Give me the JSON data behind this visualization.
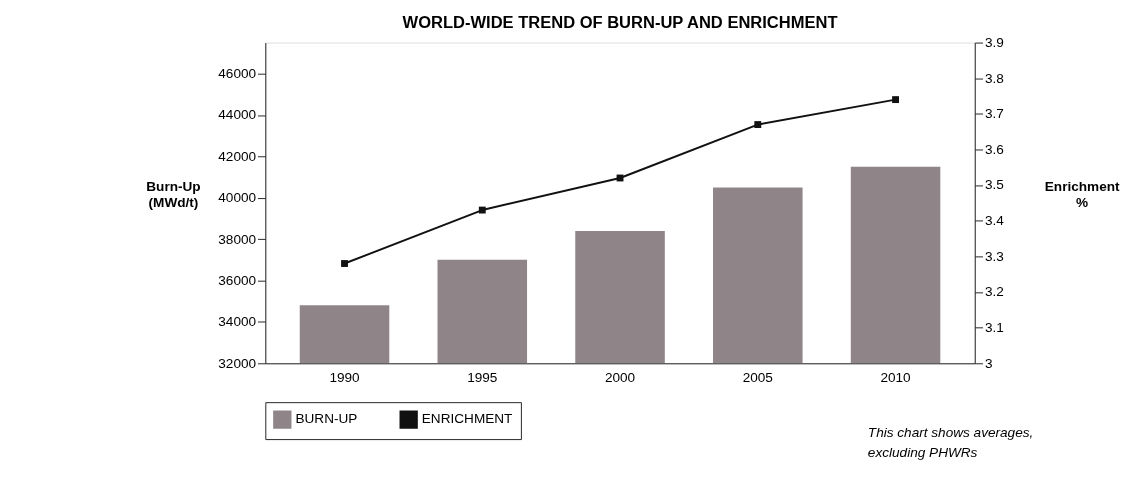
{
  "chart_data": {
    "type": "bar",
    "title": "WORLD-WIDE TREND OF BURN-UP AND ENRICHMENT",
    "categories": [
      "1990",
      "1995",
      "2000",
      "2005",
      "2010"
    ],
    "series": [
      {
        "name": "BURN-UP",
        "color": "#8f8588",
        "values": [
          34800,
          37000,
          38400,
          40500,
          41500
        ]
      },
      {
        "name": "ENRICHMENT",
        "type": "line",
        "axis": "y2",
        "color": "#111111",
        "values": [
          3.28,
          3.43,
          3.52,
          3.67,
          3.74
        ]
      }
    ],
    "ylabel": "Burn-Up (MWd/t)",
    "y2label": "Enrichment %",
    "ylim": [
      32000,
      47500
    ],
    "yticks": [
      32000,
      34000,
      36000,
      38000,
      40000,
      42000,
      44000,
      46000
    ],
    "y2lim": [
      3,
      3.9
    ],
    "y2ticks": [
      3,
      3.1,
      3.2,
      3.3,
      3.4,
      3.5,
      3.6,
      3.7,
      3.8,
      3.9
    ],
    "annotations": [
      "This chart shows averages,",
      "excluding PHWRs"
    ],
    "legend": "bottom",
    "grid": false,
    "marker": "square",
    "line_style": "solid"
  }
}
